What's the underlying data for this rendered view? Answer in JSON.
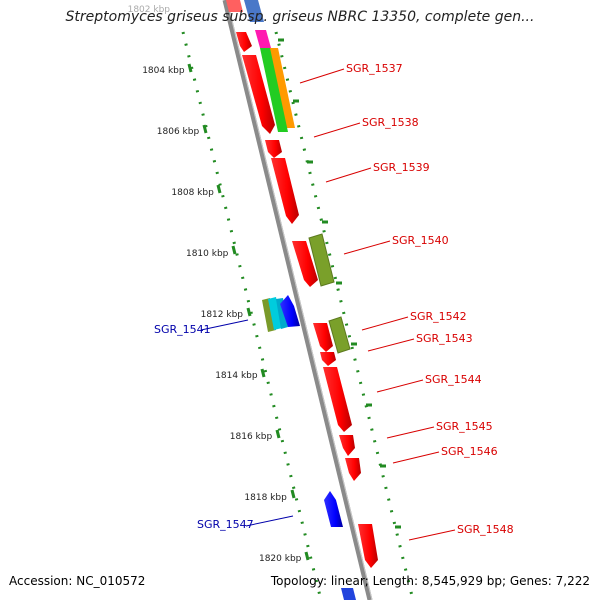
{
  "title": "Streptomyces griseus subsp. griseus NBRC 13350, complete gen...",
  "footer": {
    "accession": "Accession: NC_010572",
    "summary": "Topology: linear; Length: 8,545,929 bp; Genes: 7,222"
  },
  "kbp_labels": [
    {
      "label": "1802 kbp",
      "kbp": 1802
    },
    {
      "label": "1804 kbp",
      "kbp": 1804
    },
    {
      "label": "1806 kbp",
      "kbp": 1806
    },
    {
      "label": "1808 kbp",
      "kbp": 1808
    },
    {
      "label": "1810 kbp",
      "kbp": 1810
    },
    {
      "label": "1812 kbp",
      "kbp": 1812
    },
    {
      "label": "1814 kbp",
      "kbp": 1814
    },
    {
      "label": "1816 kbp",
      "kbp": 1816
    },
    {
      "label": "1818 kbp",
      "kbp": 1818
    },
    {
      "label": "1820 kbp",
      "kbp": 1820
    }
  ],
  "genes": [
    {
      "id": "SGR_1537",
      "strand": "forward",
      "color": "#d80000"
    },
    {
      "id": "SGR_1538",
      "strand": "forward",
      "color": "#d80000"
    },
    {
      "id": "SGR_1539",
      "strand": "forward",
      "color": "#d80000"
    },
    {
      "id": "SGR_1540",
      "strand": "forward",
      "color": "#d80000"
    },
    {
      "id": "SGR_1541",
      "strand": "reverse",
      "color": "#0000aa"
    },
    {
      "id": "SGR_1542",
      "strand": "forward",
      "color": "#d80000"
    },
    {
      "id": "SGR_1543",
      "strand": "forward",
      "color": "#d80000"
    },
    {
      "id": "SGR_1544",
      "strand": "forward",
      "color": "#d80000"
    },
    {
      "id": "SGR_1545",
      "strand": "forward",
      "color": "#d80000"
    },
    {
      "id": "SGR_1546",
      "strand": "forward",
      "color": "#d80000"
    },
    {
      "id": "SGR_1547",
      "strand": "reverse",
      "color": "#0000aa"
    },
    {
      "id": "SGR_1548",
      "strand": "forward",
      "color": "#d80000"
    }
  ],
  "colors": {
    "forward_gene": "#ff0000",
    "reverse_gene": "#0000ff",
    "axis": "#888888",
    "tick": "#228b22",
    "forward_label": "#d80000",
    "reverse_label": "#0000aa"
  }
}
